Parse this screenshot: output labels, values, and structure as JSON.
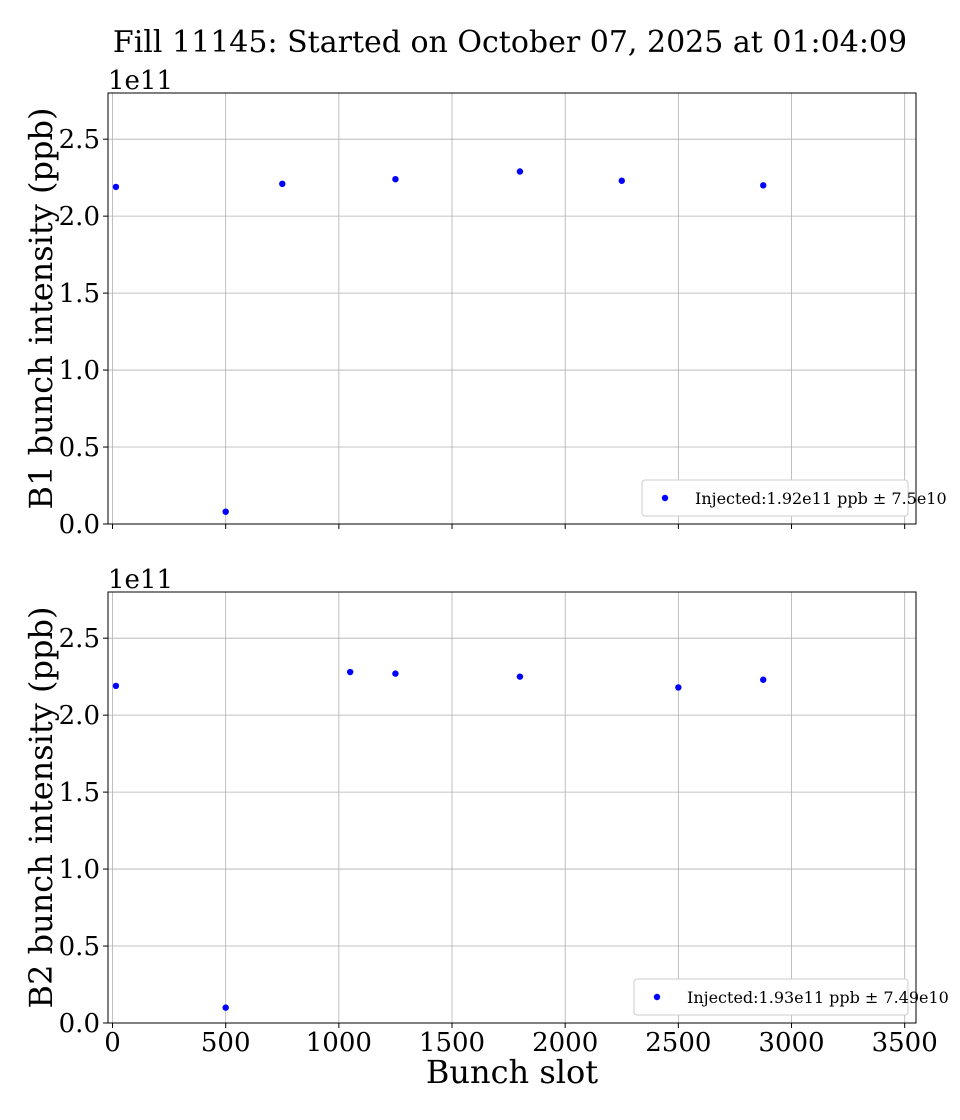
{
  "title": "Fill 11145: Started on October 07, 2025 at 01:04:09",
  "chart_data": [
    {
      "type": "scatter",
      "ylabel": "B1 bunch intensity (ppb)",
      "xlabel": "",
      "y_offset_label": "1e11",
      "xlim": [
        -20,
        3550
      ],
      "ylim": [
        0,
        2.8
      ],
      "xticks": [
        "0",
        "500",
        "1000",
        "1500",
        "2000",
        "2500",
        "3000",
        "3500"
      ],
      "yticks": [
        "0.0",
        "0.5",
        "1.0",
        "1.5",
        "2.0",
        "2.5"
      ],
      "grid": true,
      "legend_position": "lower right",
      "series": [
        {
          "name": "Injected:1.92e11 ppb ± 7.5e10",
          "color": "#0000ff",
          "x": [
            15,
            500,
            750,
            1250,
            1800,
            2250,
            2875
          ],
          "y": [
            2.19,
            0.08,
            2.21,
            2.24,
            2.29,
            2.23,
            2.2
          ]
        }
      ]
    },
    {
      "type": "scatter",
      "ylabel": "B2 bunch intensity (ppb)",
      "xlabel": "Bunch slot",
      "y_offset_label": "1e11",
      "xlim": [
        -20,
        3550
      ],
      "ylim": [
        0,
        2.8
      ],
      "xticks": [
        "0",
        "500",
        "1000",
        "1500",
        "2000",
        "2500",
        "3000",
        "3500"
      ],
      "yticks": [
        "0.0",
        "0.5",
        "1.0",
        "1.5",
        "2.0",
        "2.5"
      ],
      "grid": true,
      "legend_position": "lower right",
      "series": [
        {
          "name": "Injected:1.93e11 ppb ± 7.49e10",
          "color": "#0000ff",
          "x": [
            15,
            500,
            1050,
            1250,
            1800,
            2500,
            2875
          ],
          "y": [
            2.19,
            0.1,
            2.28,
            2.27,
            2.25,
            2.18,
            2.23
          ]
        }
      ]
    }
  ]
}
